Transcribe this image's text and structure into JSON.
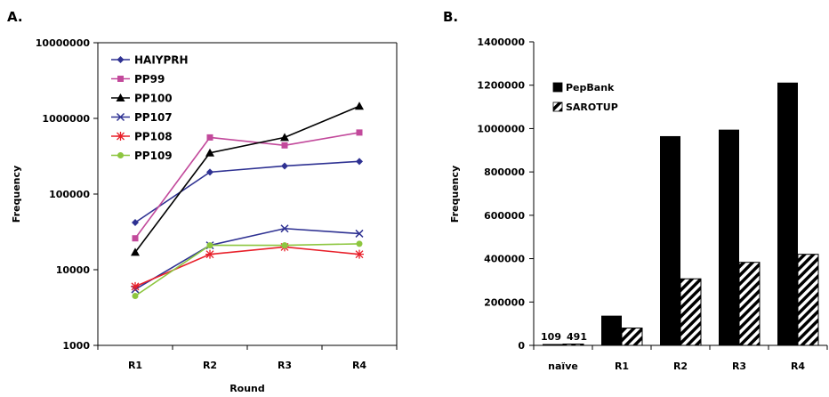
{
  "chart_data": [
    {
      "panel_label": "A.",
      "type": "line",
      "title": "",
      "xlabel": "Round",
      "ylabel": "Frequency",
      "y_scale": "log",
      "ylim": [
        1000,
        10000000
      ],
      "y_ticks": [
        "1000",
        "10000",
        "100000",
        "1000000",
        "10000000"
      ],
      "y_tick_values": [
        1000,
        10000,
        100000,
        1000000,
        10000000
      ],
      "categories": [
        "R1",
        "R2",
        "R3",
        "R4"
      ],
      "grid": false,
      "legend_position": "top-left",
      "series": [
        {
          "name": "HAIYPRH",
          "color": "#2e3192",
          "marker": "diamond",
          "values": [
            42000,
            195000,
            235000,
            270000
          ]
        },
        {
          "name": "PP99",
          "color": "#c2499b",
          "marker": "square",
          "values": [
            26000,
            560000,
            440000,
            650000
          ]
        },
        {
          "name": "PP100",
          "color": "#000000",
          "marker": "triangle",
          "values": [
            17000,
            350000,
            560000,
            1450000
          ]
        },
        {
          "name": "PP107",
          "color": "#2e3192",
          "marker": "x",
          "values": [
            5500,
            21000,
            35000,
            30000
          ]
        },
        {
          "name": "PP108",
          "color": "#e8202a",
          "marker": "star",
          "values": [
            6000,
            16000,
            20000,
            16000
          ]
        },
        {
          "name": "PP109",
          "color": "#8dc63f",
          "marker": "circle",
          "values": [
            4500,
            21000,
            21000,
            22000
          ]
        }
      ]
    },
    {
      "panel_label": "B.",
      "type": "bar",
      "title": "",
      "xlabel": "",
      "ylabel": "Frequency",
      "ylim": [
        0,
        1400000
      ],
      "y_ticks": [
        "0",
        "200000",
        "400000",
        "600000",
        "800000",
        "1000000",
        "1200000",
        "1400000"
      ],
      "y_tick_values": [
        0,
        200000,
        400000,
        600000,
        800000,
        1000000,
        1200000,
        1400000
      ],
      "categories": [
        "naïve",
        "R1",
        "R2",
        "R3",
        "R4"
      ],
      "grid": false,
      "legend_position": "top-left",
      "data_labels": [
        "109",
        "491"
      ],
      "series": [
        {
          "name": "PepBank",
          "fill": "solid",
          "color": "#000000",
          "values": [
            109,
            137000,
            965000,
            995000,
            1212000
          ]
        },
        {
          "name": "SAROTUP",
          "fill": "diagonal-stripes",
          "color": "#000000",
          "values": [
            491,
            80000,
            307000,
            383000,
            420000
          ]
        }
      ]
    }
  ]
}
